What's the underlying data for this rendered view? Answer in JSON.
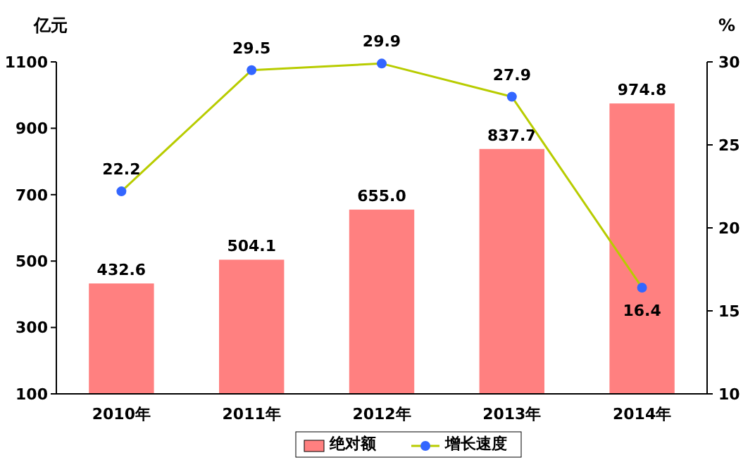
{
  "chart_data": {
    "type": "bar",
    "categories": [
      "2010年",
      "2011年",
      "2012年",
      "2013年",
      "2014年"
    ],
    "ylabel": "亿元",
    "y2label": "%",
    "ylim": [
      100,
      1100
    ],
    "yticks": [
      100,
      300,
      500,
      700,
      900,
      1100
    ],
    "y2lim": [
      10,
      30
    ],
    "y2ticks": [
      10,
      15,
      20,
      25,
      30
    ],
    "series": [
      {
        "name": "绝对额",
        "color": "#ff8080",
        "values": [
          432.6,
          504.1,
          655.0,
          837.7,
          974.8
        ],
        "value_labels": [
          "432.6",
          "504.1",
          "655.0",
          "837.7",
          "974.8"
        ]
      },
      {
        "name": "增长速度",
        "type": "line",
        "axis": "y2",
        "color": "#b8cc00",
        "colors": [
          "#3366ff",
          "#3366ff",
          "#3366ff",
          "#3366ff",
          "#3366ff"
        ],
        "values": [
          22.2,
          29.5,
          29.9,
          27.9,
          16.4
        ],
        "value_labels": [
          "22.2",
          "29.5",
          "29.9",
          "27.9",
          "16.4"
        ]
      }
    ],
    "marker": "circle",
    "line_style": "solid",
    "legend": "bottom",
    "grid": false,
    "data_labels": true
  }
}
